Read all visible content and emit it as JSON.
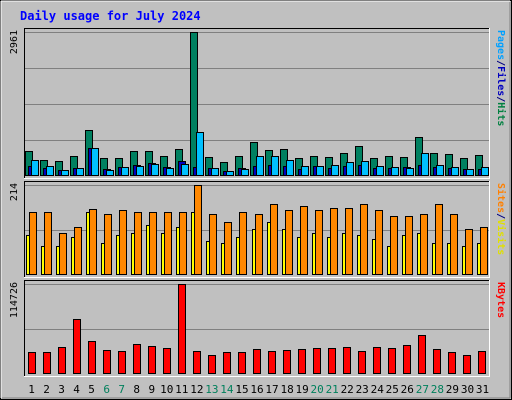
{
  "chart_data": {
    "type": "bar",
    "title": "Daily usage for July 2024",
    "categories": [
      "1",
      "2",
      "3",
      "4",
      "5",
      "6",
      "7",
      "8",
      "9",
      "10",
      "11",
      "12",
      "13",
      "14",
      "15",
      "16",
      "17",
      "18",
      "19",
      "20",
      "21",
      "22",
      "23",
      "24",
      "25",
      "26",
      "27",
      "28",
      "29",
      "30",
      "31"
    ],
    "weekend_days": [
      "6",
      "7",
      "13",
      "14",
      "20",
      "21",
      "27",
      "28"
    ],
    "panels": [
      {
        "name": "hits-files-pages",
        "ymax_label": "2961",
        "ylim": [
          0,
          2961
        ],
        "axis_label_parts": [
          {
            "text": "Pages",
            "color": "#00a0ff"
          },
          {
            "text": "/",
            "color": "#000080"
          },
          {
            "text": "Files",
            "color": "#0000c0"
          },
          {
            "text": "/",
            "color": "#000080"
          },
          {
            "text": "Hits",
            "color": "#008040"
          }
        ],
        "series": [
          {
            "name": "Hits",
            "color": "#008060",
            "offset": 0,
            "values": [
              510,
              320,
              300,
              420,
              950,
              370,
              380,
              510,
              520,
              420,
              560,
              2961,
              400,
              280,
              410,
              690,
              540,
              560,
              370,
              420,
              390,
              480,
              620,
              380,
              420,
              400,
              800,
              480,
              460,
              360,
              440
            ]
          },
          {
            "name": "Files",
            "color": "#0000c0",
            "offset": 1,
            "values": [
              200,
              160,
              120,
              160,
              580,
              140,
              180,
              220,
              260,
              180,
              310,
              180,
              160,
              110,
              170,
              200,
              220,
              200,
              150,
              210,
              170,
              200,
              220,
              160,
              170,
              190,
              220,
              180,
              160,
              140,
              150
            ]
          },
          {
            "name": "Pages",
            "color": "#00c0ff",
            "offset": 2,
            "values": [
              320,
              200,
              120,
              160,
              580,
              130,
              180,
              200,
              250,
              170,
              240,
              900,
              160,
              110,
              150,
              420,
              410,
              320,
              200,
              210,
              220,
              280,
              300,
              200,
              180,
              170,
              480,
              220,
              190,
              150,
              180
            ]
          }
        ]
      },
      {
        "name": "visits-sites",
        "ymax_label": "214",
        "ylim": [
          0,
          214
        ],
        "axis_label_parts": [
          {
            "text": "Sites",
            "color": "#ff8000"
          },
          {
            "text": "/",
            "color": "#000080"
          },
          {
            "text": "Visits",
            "color": "#e0e000"
          }
        ],
        "series": [
          {
            "name": "Visits",
            "color": "#ffff00",
            "offset": 0,
            "values": [
              95,
              70,
              68,
              90,
              150,
              75,
              95,
              100,
              120,
              100,
              115,
              150,
              80,
              75,
              90,
              110,
              125,
              110,
              90,
              100,
              90,
              100,
              95,
              85,
              70,
              95,
              100,
              75,
              75,
              70,
              75
            ]
          },
          {
            "name": "Sites",
            "color": "#ff8800",
            "offset": 1,
            "values": [
              150,
              150,
              100,
              115,
              157,
              145,
              155,
              150,
              150,
              150,
              150,
              214,
              145,
              125,
              150,
              145,
              170,
              155,
              165,
              155,
              160,
              160,
              170,
              155,
              140,
              140,
              145,
              170,
              145,
              110,
              115
            ]
          }
        ]
      },
      {
        "name": "kbytes",
        "ymax_label": "114726",
        "ylim": [
          0,
          114726
        ],
        "axis_label_parts": [
          {
            "text": "KBytes",
            "color": "#ff0000"
          }
        ],
        "series": [
          {
            "name": "KBytes",
            "color": "#ff0000",
            "offset": 0,
            "values": [
              28000,
              28500,
              35000,
              70000,
              41500,
              30000,
              29000,
              38000,
              36000,
              33000,
              114726,
              29500,
              24000,
              28500,
              28000,
              31500,
              29000,
              30500,
              32500,
              33000,
              33500,
              35000,
              29500,
              34000,
              33000,
              37500,
              50000,
              31500,
              28500,
              24000,
              29000
            ]
          }
        ]
      }
    ],
    "colors": {
      "title": "#0000ff",
      "weekday_label": "#000000",
      "weekend_label": "#00805c",
      "background": "#c0c0c0",
      "plot_background": "#c0c0c0",
      "grid": "#808080"
    }
  }
}
